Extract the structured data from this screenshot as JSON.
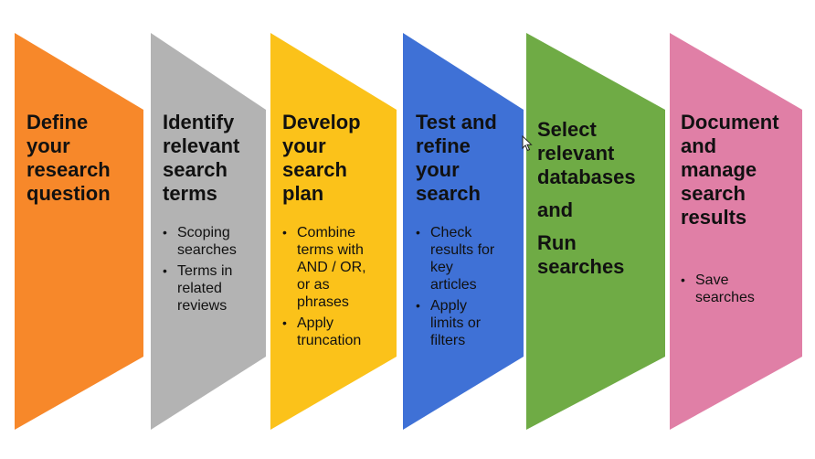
{
  "steps": [
    {
      "color": "#F7882A",
      "title_lines": [
        "Define",
        "your",
        "research",
        "question"
      ],
      "bullets": []
    },
    {
      "color": "#B3B3B3",
      "title_lines": [
        "Identify",
        "relevant",
        "search",
        "terms"
      ],
      "bullets": [
        [
          "Scoping",
          "searches"
        ],
        [
          "Terms in",
          "related",
          "reviews"
        ]
      ]
    },
    {
      "color": "#FBC21A",
      "title_lines": [
        "Develop",
        "your",
        "search",
        "plan"
      ],
      "bullets": [
        [
          "Combine",
          "terms with",
          "AND / OR,",
          "or as",
          "phrases"
        ],
        [
          "Apply",
          "truncation"
        ]
      ]
    },
    {
      "color": "#3F71D6",
      "title_lines": [
        "Test and",
        "refine",
        "your",
        "search"
      ],
      "bullets": [
        [
          "Check",
          "results for",
          "key",
          "articles"
        ],
        [
          "Apply",
          "limits or",
          "filters"
        ]
      ]
    },
    {
      "color": "#6FAB45",
      "title_lines": [
        "Select",
        "relevant",
        "databases"
      ],
      "extra_lines": [
        "and"
      ],
      "extra_lines_2": [
        "Run",
        "searches"
      ],
      "bullets": []
    },
    {
      "color": "#E07FA6",
      "title_lines": [
        "Document",
        "and",
        "manage",
        "search",
        "results"
      ],
      "bullets": [
        [
          "Save",
          "searches"
        ]
      ]
    }
  ],
  "icons": {
    "cursor": "mouse-pointer-icon"
  }
}
